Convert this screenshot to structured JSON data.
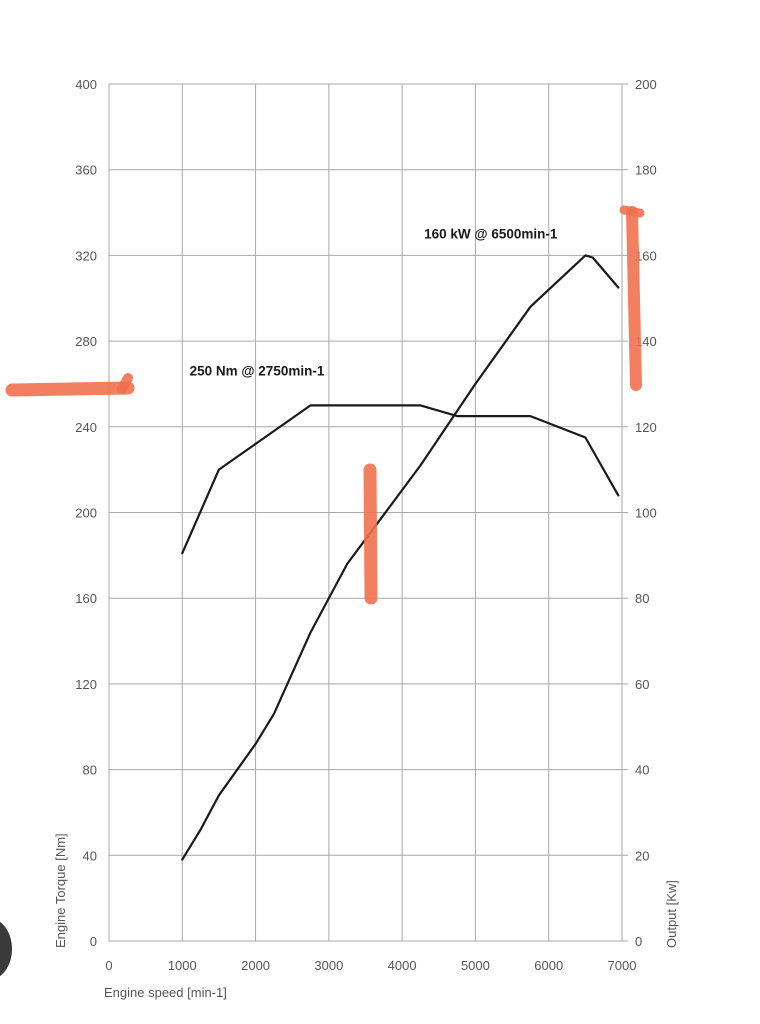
{
  "colors": {
    "series_line": "#1a1a1a",
    "grid": "#a9a9a9",
    "tick_text": "#555555",
    "highlighter": "#f0714f"
  },
  "chart_data": {
    "type": "line",
    "title": "",
    "xlabel": "Engine speed [min-1]",
    "ylabel": "Engine Torque [Nm]",
    "y2label": "Output [Kw]",
    "xlim": [
      0,
      7000
    ],
    "ylim": [
      0,
      400
    ],
    "y2lim": [
      0,
      200
    ],
    "grid": true,
    "x_ticks": [
      "0",
      "1000",
      "2000",
      "3000",
      "4000",
      "5000",
      "6000",
      "7000"
    ],
    "y_ticks": [
      "0",
      "40",
      "80",
      "120",
      "160",
      "200",
      "240",
      "280",
      "320",
      "360",
      "400"
    ],
    "y2_ticks": [
      "0",
      "20",
      "40",
      "60",
      "80",
      "100",
      "120",
      "140",
      "160",
      "180",
      "200"
    ],
    "series": [
      {
        "axis": "left",
        "x": [
          1000,
          1500,
          2000,
          2750,
          3500,
          4250,
          4750,
          5750,
          6500,
          6950
        ],
        "y": [
          181,
          220,
          232,
          250,
          250,
          250,
          245,
          245,
          235,
          208
        ]
      },
      {
        "axis": "right",
        "x": [
          1000,
          1250,
          1500,
          2000,
          2250,
          2750,
          3250,
          4250,
          5000,
          5750,
          6000,
          6500,
          6600,
          6950
        ],
        "y": [
          19,
          26,
          34,
          46,
          53,
          72,
          88,
          111,
          130,
          148,
          152,
          160,
          159.5,
          152.5
        ]
      }
    ],
    "annotations": [
      {
        "text": "250 Nm @ 2750min-1",
        "x": 1100,
        "y": 264
      },
      {
        "text": "160 kW @ 6500min-1",
        "x": 4300,
        "y": 328
      }
    ]
  }
}
